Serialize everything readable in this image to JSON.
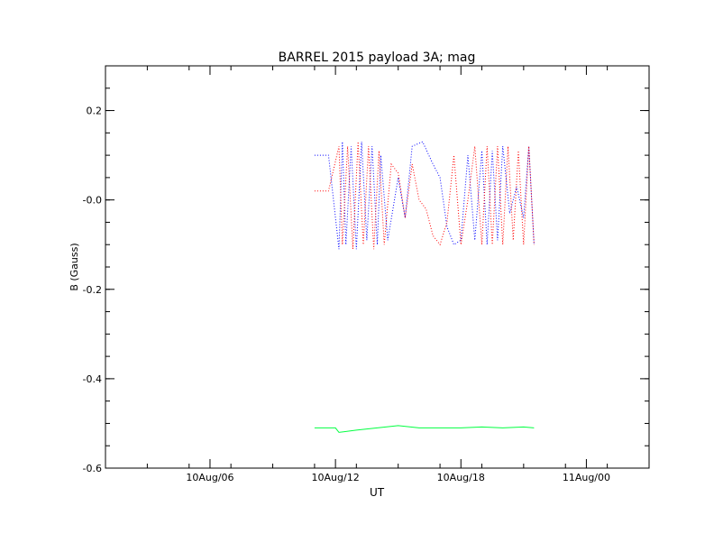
{
  "chart_data": {
    "type": "line",
    "title": "BARREL 2015 payload 3A; mag",
    "xlabel": "UT",
    "ylabel": "B (Gauss)",
    "x_range": [
      "10Aug/01",
      "11Aug/03"
    ],
    "ylim": [
      -0.6,
      0.3
    ],
    "x_ticks": [
      "10Aug/06",
      "10Aug/12",
      "10Aug/18",
      "11Aug/00"
    ],
    "y_ticks": [
      "0.2",
      "-0.0",
      "-0.2",
      "-0.4",
      "-0.6"
    ],
    "y_tick_values": [
      0.2,
      0.0,
      -0.2,
      -0.4,
      -0.6
    ],
    "grid": false,
    "series": [
      {
        "color": "#0000ff",
        "style": "dotted",
        "points": [
          [
            "10Aug/11:00",
            0.1
          ],
          [
            "10Aug/11:40",
            0.1
          ],
          [
            "10Aug/12:10",
            -0.11
          ],
          [
            "10Aug/12:20",
            0.13
          ],
          [
            "10Aug/12:30",
            -0.1
          ],
          [
            "10Aug/12:45",
            0.12
          ],
          [
            "10Aug/13:00",
            -0.11
          ],
          [
            "10Aug/13:15",
            0.13
          ],
          [
            "10Aug/13:30",
            -0.09
          ],
          [
            "10Aug/13:45",
            0.12
          ],
          [
            "10Aug/14:00",
            -0.1
          ],
          [
            "10Aug/14:10",
            0.1
          ],
          [
            "10Aug/14:30",
            -0.09
          ],
          [
            "10Aug/15:00",
            0.05
          ],
          [
            "10Aug/15:20",
            -0.04
          ],
          [
            "10Aug/15:40",
            0.12
          ],
          [
            "10Aug/16:10",
            0.13
          ],
          [
            "10Aug/16:40",
            0.08
          ],
          [
            "10Aug/17:00",
            0.05
          ],
          [
            "10Aug/17:20",
            -0.06
          ],
          [
            "10Aug/17:40",
            -0.1
          ],
          [
            "10Aug/18:00",
            -0.09
          ],
          [
            "10Aug/18:20",
            0.1
          ],
          [
            "10Aug/18:40",
            -0.09
          ],
          [
            "10Aug/19:00",
            0.11
          ],
          [
            "10Aug/19:15",
            -0.1
          ],
          [
            "10Aug/19:30",
            0.11
          ],
          [
            "10Aug/19:45",
            -0.09
          ],
          [
            "10Aug/20:00",
            0.12
          ],
          [
            "10Aug/20:20",
            -0.03
          ],
          [
            "10Aug/20:40",
            0.03
          ],
          [
            "10Aug/21:00",
            -0.04
          ],
          [
            "10Aug/21:15",
            0.12
          ],
          [
            "10Aug/21:30",
            -0.1
          ]
        ]
      },
      {
        "color": "#ff0000",
        "style": "dotted",
        "points": [
          [
            "10Aug/11:00",
            0.02
          ],
          [
            "10Aug/11:40",
            0.02
          ],
          [
            "10Aug/12:10",
            0.12
          ],
          [
            "10Aug/12:20",
            -0.1
          ],
          [
            "10Aug/12:35",
            0.12
          ],
          [
            "10Aug/12:50",
            -0.11
          ],
          [
            "10Aug/13:05",
            0.13
          ],
          [
            "10Aug/13:20",
            -0.1
          ],
          [
            "10Aug/13:35",
            0.12
          ],
          [
            "10Aug/13:50",
            -0.11
          ],
          [
            "10Aug/14:05",
            0.11
          ],
          [
            "10Aug/14:20",
            -0.1
          ],
          [
            "10Aug/14:40",
            0.08
          ],
          [
            "10Aug/15:00",
            0.06
          ],
          [
            "10Aug/15:20",
            -0.04
          ],
          [
            "10Aug/15:40",
            0.08
          ],
          [
            "10Aug/16:00",
            0.0
          ],
          [
            "10Aug/16:20",
            -0.02
          ],
          [
            "10Aug/16:40",
            -0.08
          ],
          [
            "10Aug/17:00",
            -0.1
          ],
          [
            "10Aug/17:20",
            -0.05
          ],
          [
            "10Aug/17:40",
            0.1
          ],
          [
            "10Aug/18:00",
            -0.1
          ],
          [
            "10Aug/18:20",
            0.0
          ],
          [
            "10Aug/18:40",
            0.12
          ],
          [
            "10Aug/19:00",
            -0.1
          ],
          [
            "10Aug/19:15",
            0.12
          ],
          [
            "10Aug/19:30",
            -0.1
          ],
          [
            "10Aug/19:45",
            0.12
          ],
          [
            "10Aug/20:00",
            -0.1
          ],
          [
            "10Aug/20:15",
            0.12
          ],
          [
            "10Aug/20:30",
            -0.09
          ],
          [
            "10Aug/20:45",
            0.11
          ],
          [
            "10Aug/21:00",
            -0.1
          ],
          [
            "10Aug/21:15",
            0.12
          ],
          [
            "10Aug/21:30",
            -0.1
          ]
        ]
      },
      {
        "color": "#00ff40",
        "style": "solid",
        "points": [
          [
            "10Aug/11:00",
            -0.51
          ],
          [
            "10Aug/12:00",
            -0.51
          ],
          [
            "10Aug/12:10",
            -0.52
          ],
          [
            "10Aug/13:00",
            -0.515
          ],
          [
            "10Aug/14:00",
            -0.51
          ],
          [
            "10Aug/15:00",
            -0.505
          ],
          [
            "10Aug/16:00",
            -0.51
          ],
          [
            "10Aug/17:00",
            -0.51
          ],
          [
            "10Aug/18:00",
            -0.51
          ],
          [
            "10Aug/19:00",
            -0.508
          ],
          [
            "10Aug/20:00",
            -0.51
          ],
          [
            "10Aug/21:00",
            -0.508
          ],
          [
            "10Aug/21:30",
            -0.51
          ]
        ]
      }
    ]
  }
}
